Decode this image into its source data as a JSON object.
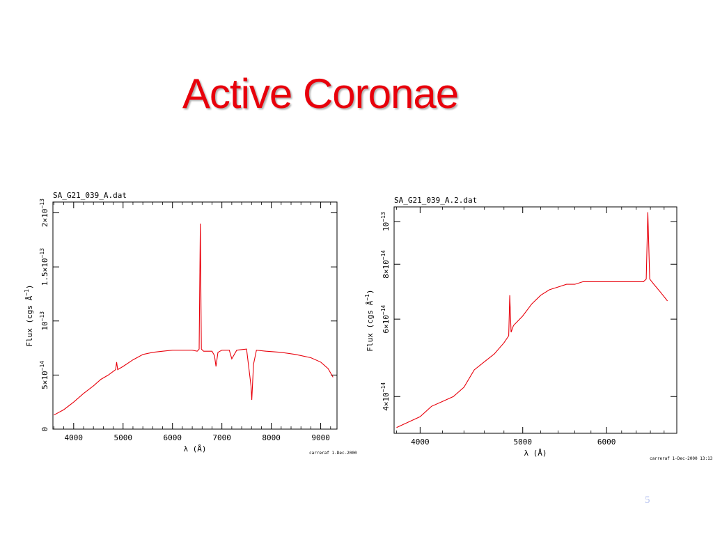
{
  "slide": {
    "title": "Active Coronae",
    "page_number": "5"
  },
  "chart_data": [
    {
      "type": "line",
      "title": "SA_G21_039_A.dat",
      "xlabel": "λ (Å)",
      "ylabel": "Flux (cgs Å",
      "ylabel_sup": "−1",
      "ylabel_close": ")",
      "footer": "carreraf   1-Dec-2000",
      "xlim": [
        3580,
        9330
      ],
      "ylim": [
        0,
        2.1e-13
      ],
      "x_ticks": [
        4000,
        5000,
        6000,
        7000,
        8000,
        9000
      ],
      "x_tick_labels": [
        "4000",
        "5000",
        "6000",
        "7000",
        "8000",
        "9000"
      ],
      "y_ticks": [
        0,
        5e-14,
        1e-13,
        1.5e-13,
        2e-13
      ],
      "y_tick_labels": [
        {
          "base": "0",
          "exp": ""
        },
        {
          "base": "5×10",
          "exp": "−14"
        },
        {
          "base": "10",
          "exp": "−13"
        },
        {
          "base": "1.5×10",
          "exp": "−13"
        },
        {
          "base": "2×10",
          "exp": "−13"
        }
      ],
      "color": "#e8000b",
      "series": [
        {
          "x": [
            3600,
            3800,
            4000,
            4200,
            4400,
            4550,
            4700,
            4850,
            4870,
            4890,
            5000,
            5200,
            5400,
            5600,
            5800,
            6000,
            6200,
            6400,
            6500,
            6540,
            6563,
            6585,
            6630,
            6800,
            6850,
            6880,
            6920,
            7000,
            7150,
            7200,
            7300,
            7500,
            7590,
            7605,
            7640,
            7700,
            7900,
            8200,
            8500,
            8800,
            9000,
            9150,
            9250
          ],
          "y": [
            1.3e-14,
            1.8e-14,
            2.5e-14,
            3.3e-14,
            4e-14,
            4.6e-14,
            5e-14,
            5.5e-14,
            6.2e-14,
            5.5e-14,
            5.8e-14,
            6.4e-14,
            6.9e-14,
            7.1e-14,
            7.2e-14,
            7.3e-14,
            7.3e-14,
            7.3e-14,
            7.2e-14,
            7.4e-14,
            1.9e-13,
            7.4e-14,
            7.2e-14,
            7.2e-14,
            6.8e-14,
            5.8e-14,
            7.1e-14,
            7.3e-14,
            7.3e-14,
            6.5e-14,
            7.3e-14,
            7.4e-14,
            4e-14,
            2.7e-14,
            6e-14,
            7.3e-14,
            7.2e-14,
            7.1e-14,
            6.9e-14,
            6.6e-14,
            6.2e-14,
            5.6e-14,
            4.8e-14
          ]
        }
      ]
    },
    {
      "type": "line",
      "title": "SA_G21_039_A.2.dat",
      "xlabel": "λ (Å)",
      "ylabel": "Flux (cgs Å",
      "ylabel_sup": "−1",
      "ylabel_close": ")",
      "footer": "carreraf   1-Dec-2000 13:13",
      "xscale": "log",
      "yscale": "log",
      "xlim": [
        3780,
        6990
      ],
      "ylim": [
        3.3e-14,
        1.08e-13
      ],
      "x_ticks": [
        4000,
        5000,
        6000
      ],
      "x_tick_labels": [
        "4000",
        "5000",
        "6000"
      ],
      "y_ticks": [
        4e-14,
        6e-14,
        8e-14,
        1e-13
      ],
      "y_tick_labels": [
        {
          "base": "4×10",
          "exp": "−14"
        },
        {
          "base": "6×10",
          "exp": "−14"
        },
        {
          "base": "8×10",
          "exp": "−14"
        },
        {
          "base": "10",
          "exp": "−13"
        }
      ],
      "color": "#e8000b",
      "series": [
        {
          "x": [
            3800,
            3900,
            4000,
            4100,
            4200,
            4300,
            4400,
            4500,
            4600,
            4700,
            4800,
            4850,
            4861,
            4875,
            4900,
            5000,
            5100,
            5200,
            5300,
            5400,
            5500,
            5600,
            5700,
            5800,
            5900,
            6000,
            6100,
            6200,
            6300,
            6400,
            6500,
            6540,
            6563,
            6590,
            6650,
            6750,
            6850
          ],
          "y": [
            3.4e-14,
            3.5e-14,
            3.6e-14,
            3.8e-14,
            3.9e-14,
            4e-14,
            4.2e-14,
            4.6e-14,
            4.8e-14,
            5e-14,
            5.3e-14,
            5.5e-14,
            6.8e-14,
            5.6e-14,
            5.8e-14,
            6.1e-14,
            6.5e-14,
            6.8e-14,
            7e-14,
            7.1e-14,
            7.2e-14,
            7.2e-14,
            7.3e-14,
            7.3e-14,
            7.3e-14,
            7.3e-14,
            7.3e-14,
            7.3e-14,
            7.3e-14,
            7.3e-14,
            7.3e-14,
            7.4e-14,
            1.05e-13,
            7.4e-14,
            7.2e-14,
            6.9e-14,
            6.6e-14
          ]
        }
      ]
    }
  ]
}
